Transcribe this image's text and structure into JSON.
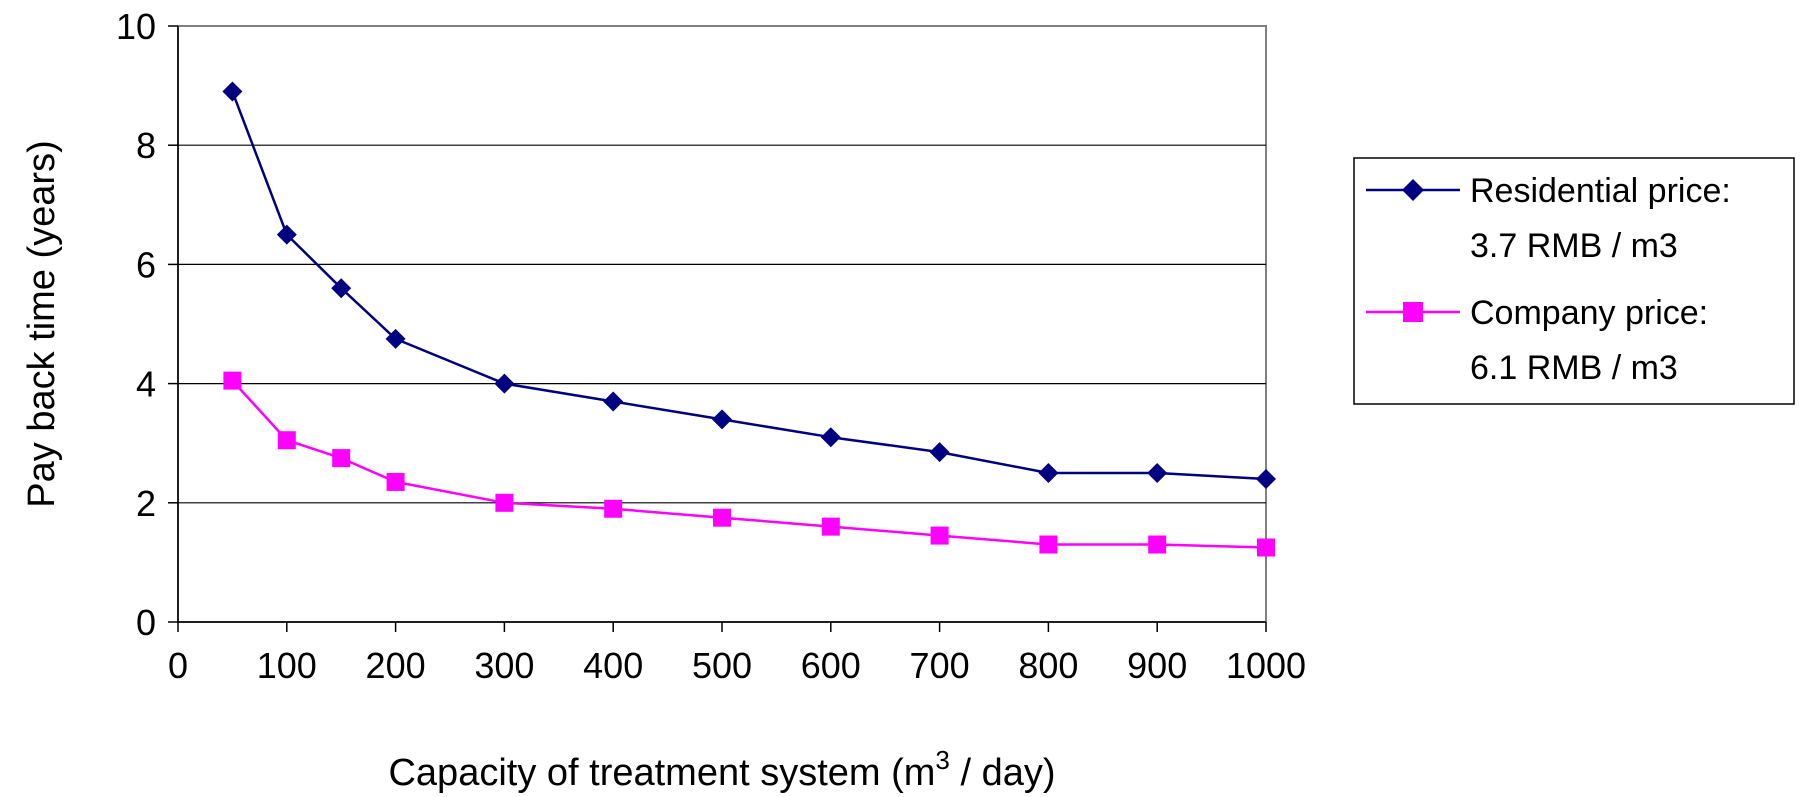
{
  "chart_data": {
    "type": "line",
    "title": "",
    "xlabel": "Capacity of treatment system (m",
    "xlabel_superscript": "3",
    "xlabel_suffix": " / day)",
    "ylabel": "Pay back time (years)",
    "xlim": [
      0,
      1000
    ],
    "ylim": [
      0,
      10
    ],
    "x_ticks": [
      0,
      100,
      200,
      300,
      400,
      500,
      600,
      700,
      800,
      900,
      1000
    ],
    "y_ticks": [
      0,
      2,
      4,
      6,
      8,
      10
    ],
    "grid": "horizontal",
    "legend_position": "right",
    "x": [
      50,
      100,
      150,
      200,
      300,
      400,
      500,
      600,
      700,
      800,
      900,
      1000
    ],
    "series": [
      {
        "name": "Residential price:",
        "name_line2": "3.7 RMB / m3",
        "color": "#000080",
        "marker": "diamond",
        "values": [
          8.9,
          6.5,
          5.6,
          4.75,
          4.0,
          3.7,
          3.4,
          3.1,
          2.85,
          2.5,
          2.5,
          2.4
        ]
      },
      {
        "name": "Company price:",
        "name_line2": "6.1 RMB / m3",
        "color": "#ff00ff",
        "marker": "square",
        "values": [
          4.05,
          3.05,
          2.75,
          2.35,
          2.0,
          1.9,
          1.75,
          1.6,
          1.45,
          1.3,
          1.3,
          1.25
        ]
      }
    ]
  }
}
